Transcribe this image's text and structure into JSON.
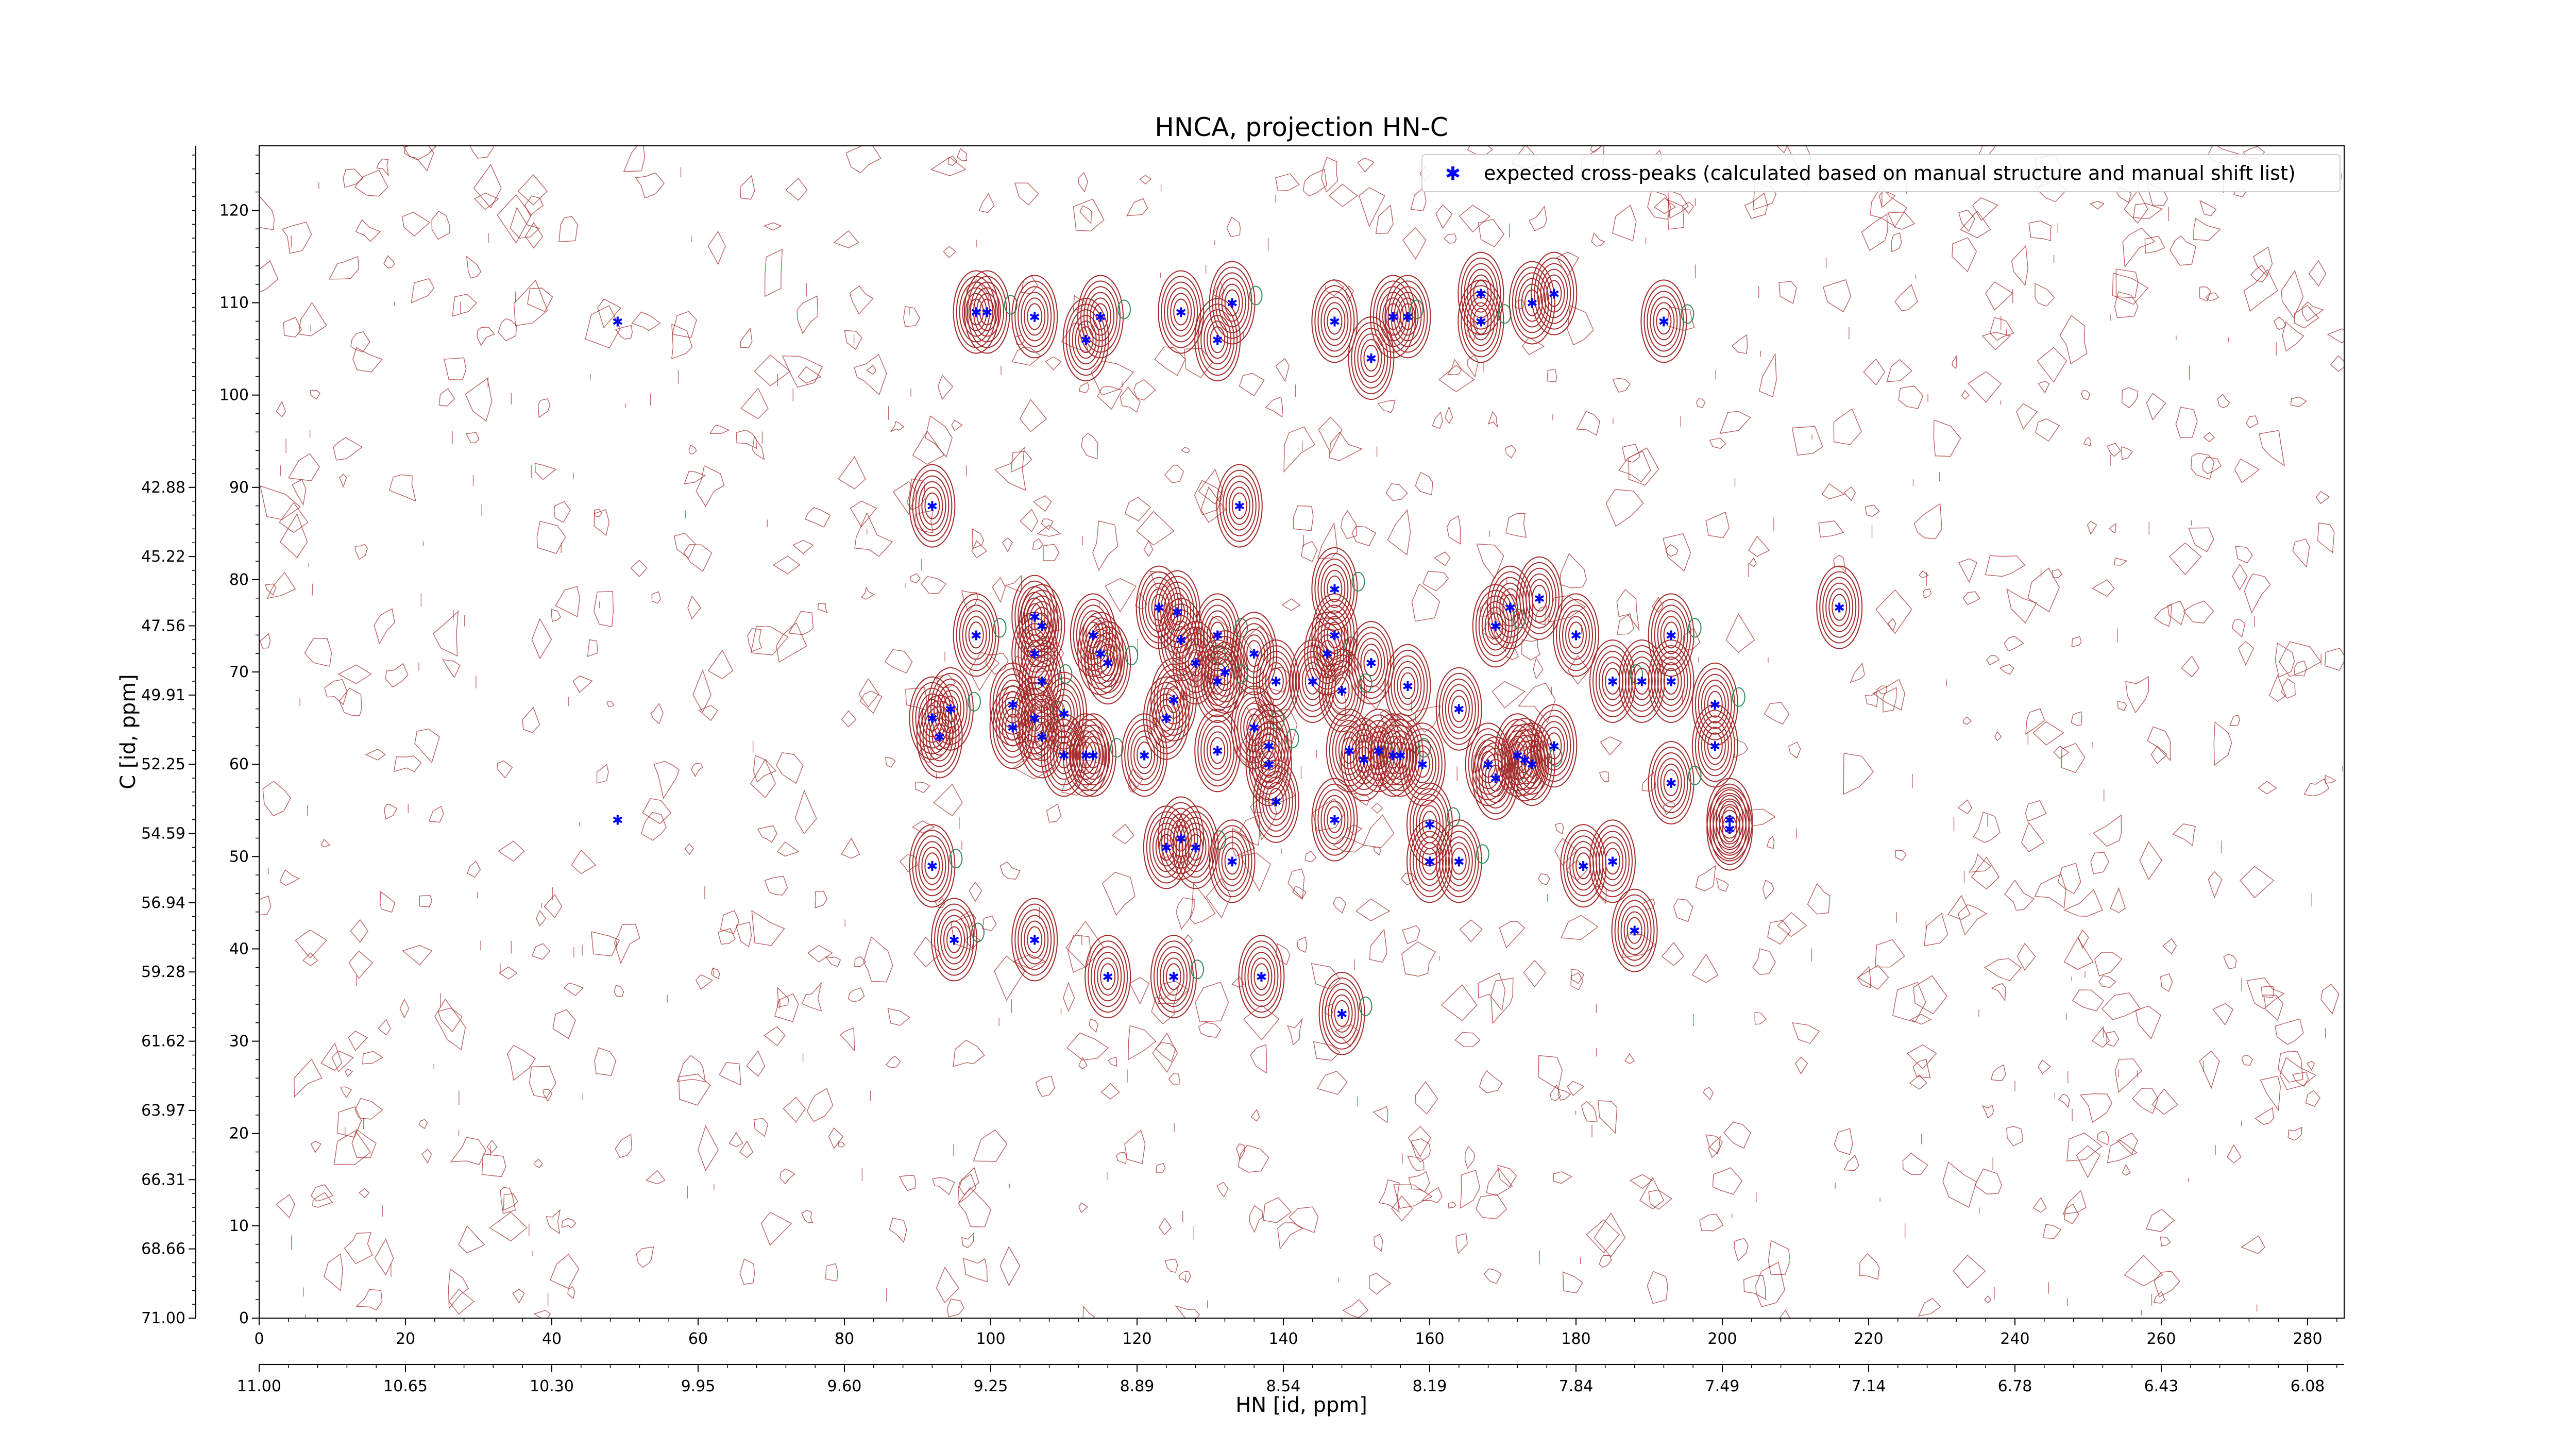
{
  "chart_data": {
    "type": "scatter",
    "title": "HNCA, projection HN-C",
    "xlabel": "HN [id, ppm]",
    "ylabel": "C [id, ppm]",
    "x_index_range": [
      0,
      285
    ],
    "y_index_range": [
      0,
      127
    ],
    "x_index_ticks": [
      "0",
      "20",
      "40",
      "60",
      "80",
      "100",
      "120",
      "140",
      "160",
      "180",
      "200",
      "220",
      "240",
      "260",
      "280"
    ],
    "y_index_ticks": [
      "0",
      "10",
      "20",
      "30",
      "40",
      "50",
      "60",
      "70",
      "80",
      "90",
      "100",
      "110",
      "120"
    ],
    "x_ppm_ticks": [
      "11.00",
      "10.65",
      "10.30",
      "9.95",
      "9.60",
      "9.25",
      "8.89",
      "8.54",
      "8.19",
      "7.84",
      "7.49",
      "7.14",
      "6.78",
      "6.43",
      "6.08"
    ],
    "y_ppm_ticks": [
      "71.00",
      "68.66",
      "66.31",
      "63.97",
      "61.62",
      "59.28",
      "56.94",
      "54.59",
      "52.25",
      "49.91",
      "47.56",
      "45.22",
      "42.88"
    ],
    "legend": {
      "location": "top-right",
      "label": "expected cross-peaks (calculated based on manual structure and manual shift list)"
    },
    "colors": {
      "positive_contour": "#a52a2a",
      "negative_contour": "#2e8b57",
      "marker": "#0000ff"
    },
    "series": [
      {
        "name": "expected cross-peaks (calculated based on manual structure and manual shift list)",
        "points": [
          [
            49,
            108
          ],
          [
            49,
            54
          ],
          [
            98,
            109
          ],
          [
            99.5,
            109
          ],
          [
            106,
            108.5
          ],
          [
            113,
            106
          ],
          [
            115,
            108.5
          ],
          [
            126,
            109
          ],
          [
            131,
            106
          ],
          [
            133,
            110
          ],
          [
            147,
            108
          ],
          [
            152,
            104
          ],
          [
            155,
            108.5
          ],
          [
            157,
            108.5
          ],
          [
            167,
            111
          ],
          [
            167,
            108
          ],
          [
            174,
            110
          ],
          [
            177,
            111
          ],
          [
            192,
            108
          ],
          [
            92,
            88
          ],
          [
            134,
            88
          ],
          [
            147,
            79
          ],
          [
            123,
            77
          ],
          [
            125.5,
            76.5
          ],
          [
            131,
            74
          ],
          [
            106,
            76
          ],
          [
            107,
            75
          ],
          [
            98,
            74
          ],
          [
            114,
            74
          ],
          [
            171,
            77
          ],
          [
            169,
            75
          ],
          [
            175,
            78
          ],
          [
            180,
            74
          ],
          [
            193,
            74
          ],
          [
            216,
            77
          ],
          [
            115,
            72
          ],
          [
            116,
            71
          ],
          [
            106,
            72
          ],
          [
            126,
            73.5
          ],
          [
            128,
            71
          ],
          [
            132,
            70
          ],
          [
            136,
            72
          ],
          [
            146,
            72
          ],
          [
            147,
            74
          ],
          [
            152,
            71
          ],
          [
            131,
            69
          ],
          [
            139,
            69
          ],
          [
            144,
            69
          ],
          [
            148,
            68
          ],
          [
            92,
            65
          ],
          [
            93,
            63
          ],
          [
            94.5,
            66
          ],
          [
            103,
            66.5
          ],
          [
            103,
            64
          ],
          [
            106,
            65
          ],
          [
            107,
            63
          ],
          [
            110,
            65.5
          ],
          [
            107,
            69
          ],
          [
            125,
            67
          ],
          [
            124,
            65
          ],
          [
            136,
            64
          ],
          [
            157,
            68.5
          ],
          [
            164,
            66
          ],
          [
            185,
            69
          ],
          [
            189,
            69
          ],
          [
            193,
            69
          ],
          [
            199,
            66.5
          ],
          [
            110,
            61
          ],
          [
            113,
            61
          ],
          [
            114,
            61
          ],
          [
            121,
            61
          ],
          [
            131,
            61.5
          ],
          [
            138,
            62
          ],
          [
            138,
            60
          ],
          [
            149,
            61.5
          ],
          [
            151,
            60.5
          ],
          [
            153,
            61.5
          ],
          [
            155,
            61
          ],
          [
            156,
            61
          ],
          [
            159,
            60
          ],
          [
            168,
            60
          ],
          [
            169,
            58.5
          ],
          [
            172,
            61
          ],
          [
            173,
            60.5
          ],
          [
            174,
            60
          ],
          [
            177,
            62
          ],
          [
            199,
            62
          ],
          [
            193,
            58
          ],
          [
            139,
            56
          ],
          [
            147,
            54
          ],
          [
            160,
            53.5
          ],
          [
            201,
            53
          ],
          [
            201,
            54
          ],
          [
            92,
            49
          ],
          [
            124,
            51
          ],
          [
            126,
            52
          ],
          [
            128,
            51
          ],
          [
            133,
            49.5
          ],
          [
            160,
            49.5
          ],
          [
            164,
            49.5
          ],
          [
            181,
            49
          ],
          [
            185,
            49.5
          ],
          [
            95,
            41
          ],
          [
            106,
            41
          ],
          [
            116,
            37
          ],
          [
            125,
            37
          ],
          [
            137,
            37
          ],
          [
            188,
            42
          ],
          [
            148,
            33
          ]
        ]
      }
    ]
  }
}
